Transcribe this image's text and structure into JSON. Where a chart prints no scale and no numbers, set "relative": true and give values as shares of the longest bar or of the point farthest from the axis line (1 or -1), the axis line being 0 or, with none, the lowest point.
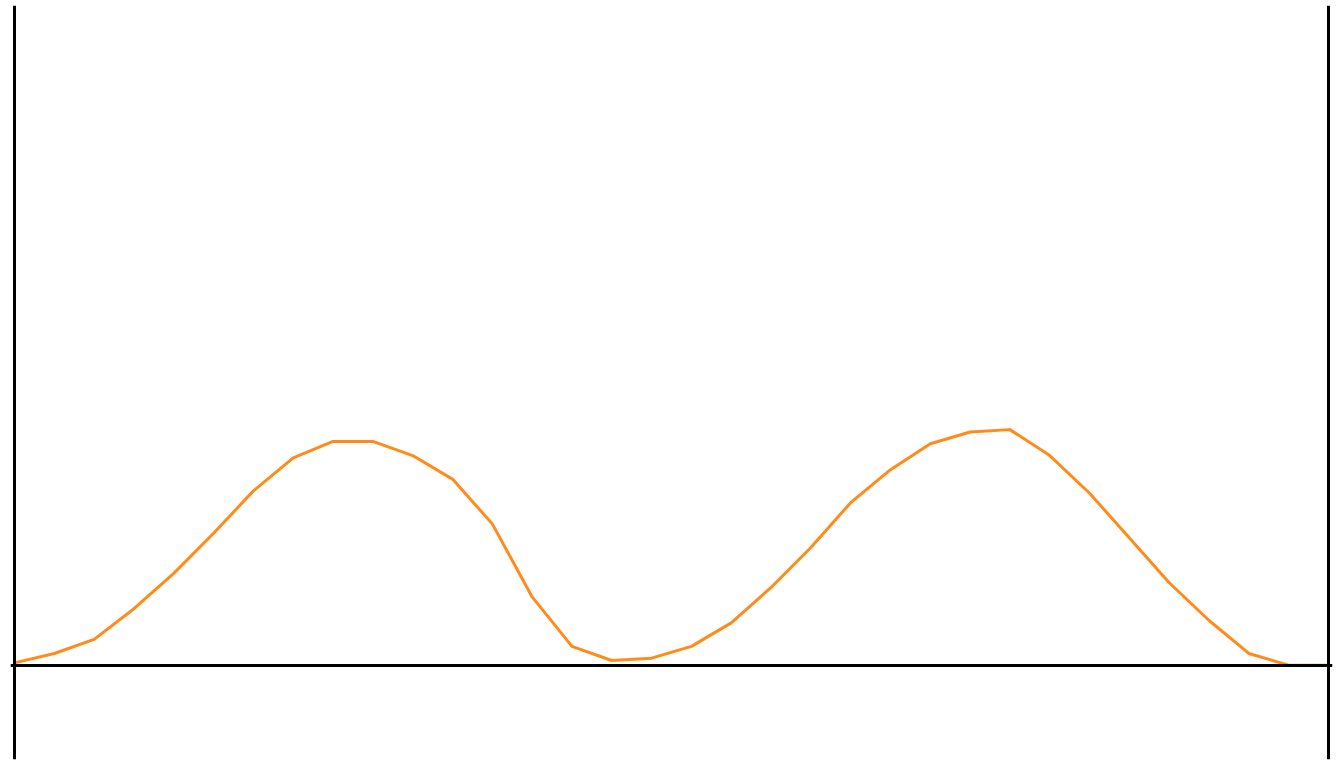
{
  "chart_data": {
    "type": "line",
    "relative": true,
    "grid": false,
    "categories": [
      null,
      null,
      null,
      null,
      null,
      null,
      null,
      null,
      null,
      null,
      null,
      null,
      null,
      null,
      null,
      null,
      null,
      null,
      null,
      null,
      null,
      null,
      null,
      null,
      null,
      null,
      null,
      null,
      null,
      null,
      null,
      null,
      null,
      null
    ],
    "series": [
      {
        "color": "#ff8c1a",
        "values": [
          0.01,
          0.05,
          0.11,
          0.24,
          0.39,
          0.56,
          0.74,
          0.88,
          0.95,
          0.95,
          0.89,
          0.79,
          0.6,
          0.29,
          0.08,
          0.02,
          0.03,
          0.08,
          0.18,
          0.33,
          0.5,
          0.69,
          0.83,
          0.94,
          0.99,
          1.0,
          0.89,
          0.73,
          0.54,
          0.35,
          0.19,
          0.05,
          0.0,
          0.0
        ]
      }
    ]
  }
}
